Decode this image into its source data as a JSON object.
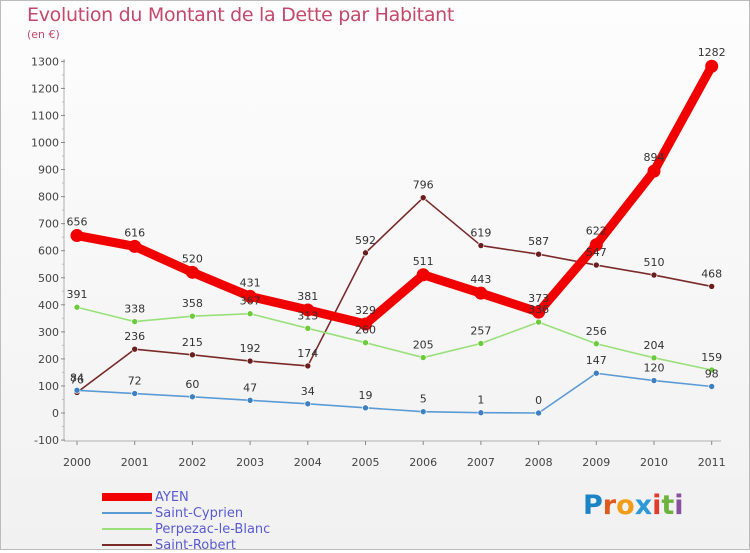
{
  "title": "Evolution du Montant de la Dette par Habitant",
  "subtitle": "(en €)",
  "brand": {
    "letters": [
      "P",
      "r",
      "o",
      "x",
      "i",
      "t",
      "i"
    ],
    "colors": [
      "#1b84c6",
      "#e05a1d",
      "#f39c1a",
      "#2c9ad6",
      "#e23b2e",
      "#6cb33f",
      "#8a4fa0"
    ]
  },
  "chart_data": {
    "type": "line",
    "x": [
      "2000",
      "2001",
      "2002",
      "2003",
      "2004",
      "2005",
      "2006",
      "2007",
      "2008",
      "2009",
      "2010",
      "2011"
    ],
    "ylim": [
      -100,
      1300
    ],
    "yticks": [
      "-100",
      "0",
      "100",
      "200",
      "300",
      "400",
      "500",
      "600",
      "700",
      "800",
      "900",
      "1000",
      "1100",
      "1200",
      "1300"
    ],
    "grid": false,
    "legend": "bottom-left",
    "series": [
      {
        "name": "Saint-Robert",
        "color": "#7b2a2a",
        "marker": "#6a1e1e",
        "thick": false,
        "values": [
          76,
          236,
          215,
          192,
          174,
          592,
          796,
          619,
          587,
          547,
          510,
          468
        ],
        "labels": [
          "76",
          "236",
          "215",
          "192",
          "174",
          "592",
          "796",
          "619",
          "587",
          "547",
          "510",
          "468"
        ]
      },
      {
        "name": "Perpezac-le-Blanc",
        "color": "#99e07a",
        "marker": "#6bcb3a",
        "thick": false,
        "values": [
          391,
          338,
          358,
          367,
          313,
          260,
          205,
          257,
          336,
          256,
          204,
          159
        ],
        "labels": [
          "391",
          "338",
          "358",
          "367",
          "313",
          "260",
          "205",
          "257",
          "336",
          "256",
          "204",
          "159"
        ]
      },
      {
        "name": "Saint-Cyprien",
        "color": "#5b9bd5",
        "marker": "#3d7fc0",
        "thick": false,
        "values": [
          84,
          72,
          60,
          47,
          34,
          19,
          5,
          1,
          0,
          147,
          120,
          98
        ],
        "labels": [
          "84",
          "72",
          "60",
          "47",
          "34",
          "19",
          "5",
          "1",
          "0",
          "147",
          "120",
          "98"
        ]
      },
      {
        "name": "AYEN",
        "color": "#f00000",
        "marker": "#f00000",
        "thick": true,
        "values": [
          656,
          616,
          520,
          431,
          381,
          329,
          511,
          443,
          373,
          622,
          894,
          1282
        ],
        "labels": [
          "656",
          "616",
          "520",
          "431",
          "381",
          "329",
          "511",
          "443",
          "373",
          "622",
          "894",
          "1282"
        ]
      }
    ],
    "legend_order": [
      "AYEN",
      "Saint-Cyprien",
      "Perpezac-le-Blanc",
      "Saint-Robert"
    ]
  }
}
